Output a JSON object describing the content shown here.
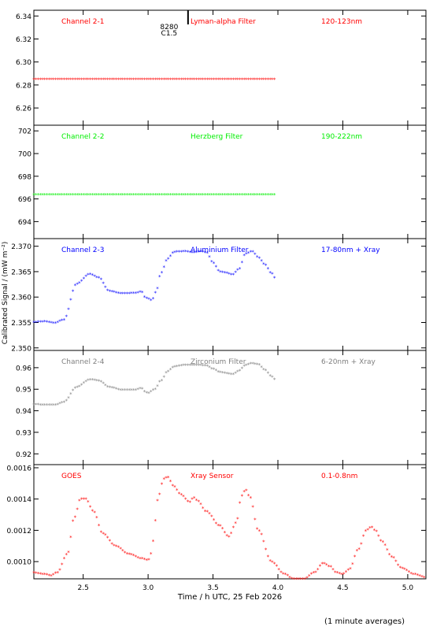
{
  "colors": {
    "red": "#ff0000",
    "green": "#00ee00",
    "blue": "#0000ff",
    "gray": "#808080",
    "black": "#000000"
  },
  "figure": {
    "xlabel": "Time / h UTC, 25 Feb 2026",
    "ylabel": "Calibrated Signal / (mW m⁻²)",
    "footnote": "(1 minute averages)",
    "xlim": [
      2.12,
      5.14
    ],
    "xticks": [
      2.5,
      3.0,
      3.5,
      4.0,
      4.5,
      5.0
    ],
    "xtick_labels": [
      "2.5",
      "3.0",
      "3.5",
      "4.0",
      "4.5",
      "5.0"
    ],
    "flare_marker": {
      "x": 3.15,
      "number": "8280",
      "class": "C1.5"
    }
  },
  "chart_data": [
    {
      "type": "scatter",
      "channel": "Channel 2-1",
      "filter": "Lyman-alpha Filter",
      "band": "120-123nm",
      "color": "#ff0000",
      "ylim": [
        6.245,
        6.345
      ],
      "yticks": [
        6.26,
        6.28,
        6.3,
        6.32,
        6.34
      ],
      "ytick_labels": [
        "6.26",
        "6.28",
        "6.30",
        "6.32",
        "6.34"
      ],
      "series": [
        {
          "x": [
            2.12,
            2.5,
            3.0,
            3.5,
            3.98
          ],
          "y": [
            6.285,
            6.285,
            6.285,
            6.285,
            6.285
          ]
        }
      ]
    },
    {
      "type": "scatter",
      "channel": "Channel 2-2",
      "filter": "Herzberg Filter",
      "band": "190-222nm",
      "color": "#00ee00",
      "ylim": [
        692.5,
        702.5
      ],
      "yticks": [
        694,
        696,
        698,
        700,
        702
      ],
      "ytick_labels": [
        "694",
        "696",
        "698",
        "700",
        "702"
      ],
      "series": [
        {
          "x": [
            2.12,
            2.5,
            3.0,
            3.5,
            3.98
          ],
          "y": [
            696.4,
            696.4,
            696.4,
            696.4,
            696.4
          ]
        }
      ]
    },
    {
      "type": "scatter",
      "channel": "Channel 2-3",
      "filter": "Aluminium Filter",
      "band": "17-80nm + Xray",
      "color": "#0000ff",
      "ylim": [
        2.3495,
        2.3715
      ],
      "yticks": [
        2.35,
        2.355,
        2.36,
        2.365,
        2.37
      ],
      "ytick_labels": [
        "2.350",
        "2.355",
        "2.360",
        "2.365",
        "2.370"
      ],
      "series": [
        {
          "x": [
            2.12,
            2.2,
            2.28,
            2.35,
            2.45,
            2.55,
            2.62,
            2.7,
            2.8,
            2.9,
            2.95,
            2.97,
            3.0,
            3.03,
            3.06,
            3.1,
            3.15,
            3.2,
            3.28,
            3.35,
            3.4,
            3.45,
            3.5,
            3.55,
            3.6,
            3.65,
            3.7,
            3.75,
            3.8,
            3.85,
            3.9,
            3.95,
            3.98
          ],
          "y": [
            2.3551,
            2.3552,
            2.3549,
            2.3555,
            2.3626,
            2.3645,
            2.3638,
            2.3612,
            2.3607,
            2.3608,
            2.3611,
            2.36,
            2.3597,
            2.3594,
            2.361,
            2.3648,
            2.3675,
            2.3689,
            2.369,
            2.3688,
            2.369,
            2.3688,
            2.3668,
            2.365,
            2.3648,
            2.3644,
            2.3655,
            2.3685,
            2.369,
            2.3678,
            2.3664,
            2.3647,
            2.3637
          ]
        }
      ]
    },
    {
      "type": "scatter",
      "channel": "Channel 2-4",
      "filter": "Zirconium Filter",
      "band": "6-20nm + Xray",
      "color": "#808080",
      "ylim": [
        0.915,
        0.968
      ],
      "yticks": [
        0.92,
        0.93,
        0.94,
        0.95,
        0.96
      ],
      "ytick_labels": [
        "0.92",
        "0.93",
        "0.94",
        "0.95",
        "0.96"
      ],
      "series": [
        {
          "x": [
            2.12,
            2.2,
            2.28,
            2.35,
            2.45,
            2.55,
            2.62,
            2.7,
            2.8,
            2.9,
            2.95,
            2.97,
            3.0,
            3.05,
            3.1,
            3.15,
            3.2,
            3.28,
            3.35,
            3.4,
            3.45,
            3.5,
            3.55,
            3.6,
            3.65,
            3.7,
            3.75,
            3.8,
            3.85,
            3.9,
            3.95,
            3.98
          ],
          "y": [
            0.943,
            0.9428,
            0.9427,
            0.944,
            0.951,
            0.9545,
            0.954,
            0.951,
            0.9497,
            0.9497,
            0.9505,
            0.949,
            0.9483,
            0.95,
            0.954,
            0.9582,
            0.9605,
            0.9613,
            0.9612,
            0.9612,
            0.961,
            0.9595,
            0.958,
            0.9575,
            0.957,
            0.9585,
            0.9612,
            0.962,
            0.9615,
            0.959,
            0.956,
            0.9545
          ]
        }
      ]
    },
    {
      "type": "scatter",
      "channel": "GOES",
      "filter": "Xray Sensor",
      "band": "0.1-0.8nm",
      "color": "#ff0000",
      "ylim": [
        0.00089,
        0.00162
      ],
      "yticks": [
        0.001,
        0.0012,
        0.0014,
        0.0016
      ],
      "ytick_labels": [
        "0.0010",
        "0.0012",
        "0.0014",
        "0.0016"
      ],
      "series": [
        {
          "x": [
            2.12,
            2.2,
            2.25,
            2.3,
            2.38,
            2.43,
            2.48,
            2.52,
            2.58,
            2.65,
            2.75,
            2.85,
            2.95,
            3.0,
            3.03,
            3.05,
            3.08,
            3.12,
            3.15,
            3.2,
            3.25,
            3.32,
            3.35,
            3.38,
            3.45,
            3.55,
            3.62,
            3.68,
            3.72,
            3.75,
            3.78,
            3.85,
            3.95,
            4.05,
            4.12,
            4.2,
            4.28,
            4.35,
            4.4,
            4.45,
            4.5,
            4.55,
            4.62,
            4.68,
            4.72,
            4.75,
            4.8,
            4.88,
            4.95,
            5.05,
            5.14
          ],
          "y": [
            0.00093,
            0.00092,
            0.00091,
            0.00093,
            0.00105,
            0.00128,
            0.0014,
            0.0014,
            0.00132,
            0.00118,
            0.0011,
            0.00105,
            0.00102,
            0.00101,
            0.00106,
            0.00125,
            0.00142,
            0.00153,
            0.00154,
            0.00148,
            0.00143,
            0.00138,
            0.00141,
            0.00139,
            0.00132,
            0.00123,
            0.00116,
            0.00125,
            0.00142,
            0.00146,
            0.00142,
            0.0012,
            0.001,
            0.00092,
            0.00089,
            0.00089,
            0.00093,
            0.00099,
            0.00097,
            0.00093,
            0.00092,
            0.00095,
            0.00108,
            0.0012,
            0.00122,
            0.0012,
            0.00113,
            0.00103,
            0.00096,
            0.00092,
            0.0009
          ]
        }
      ]
    }
  ]
}
